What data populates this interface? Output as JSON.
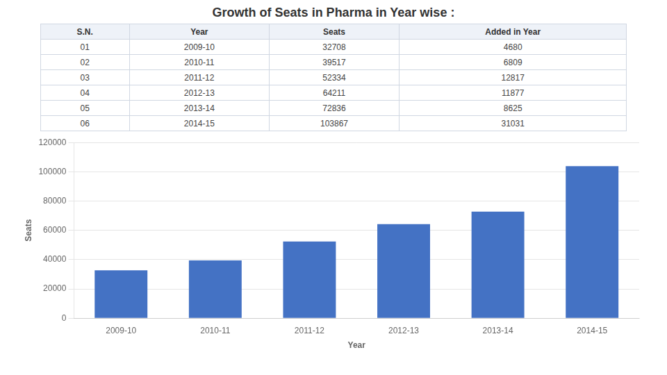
{
  "chart_data": [
    {
      "type": "table",
      "title": "Growth of Seats in Pharma in Year wise :",
      "columns": [
        "S.N.",
        "Year",
        "Seats",
        "Added in Year"
      ],
      "rows": [
        [
          "01",
          "2009-10",
          32708,
          4680
        ],
        [
          "02",
          "2010-11",
          39517,
          6809
        ],
        [
          "03",
          "2011-12",
          52334,
          12817
        ],
        [
          "04",
          "2012-13",
          64211,
          11877
        ],
        [
          "05",
          "2013-14",
          72836,
          8625
        ],
        [
          "06",
          "2014-15",
          103867,
          31031
        ]
      ]
    },
    {
      "type": "bar",
      "categories": [
        "2009-10",
        "2010-11",
        "2011-12",
        "2012-13",
        "2013-14",
        "2014-15"
      ],
      "values": [
        32708,
        39517,
        52334,
        64211,
        72836,
        103867
      ],
      "color": "#4472C4",
      "xlabel": "Year",
      "ylabel": "Seats",
      "ylim": [
        0,
        120000
      ],
      "yticks": [
        0,
        20000,
        40000,
        60000,
        80000,
        100000,
        120000
      ],
      "grid": true
    }
  ]
}
